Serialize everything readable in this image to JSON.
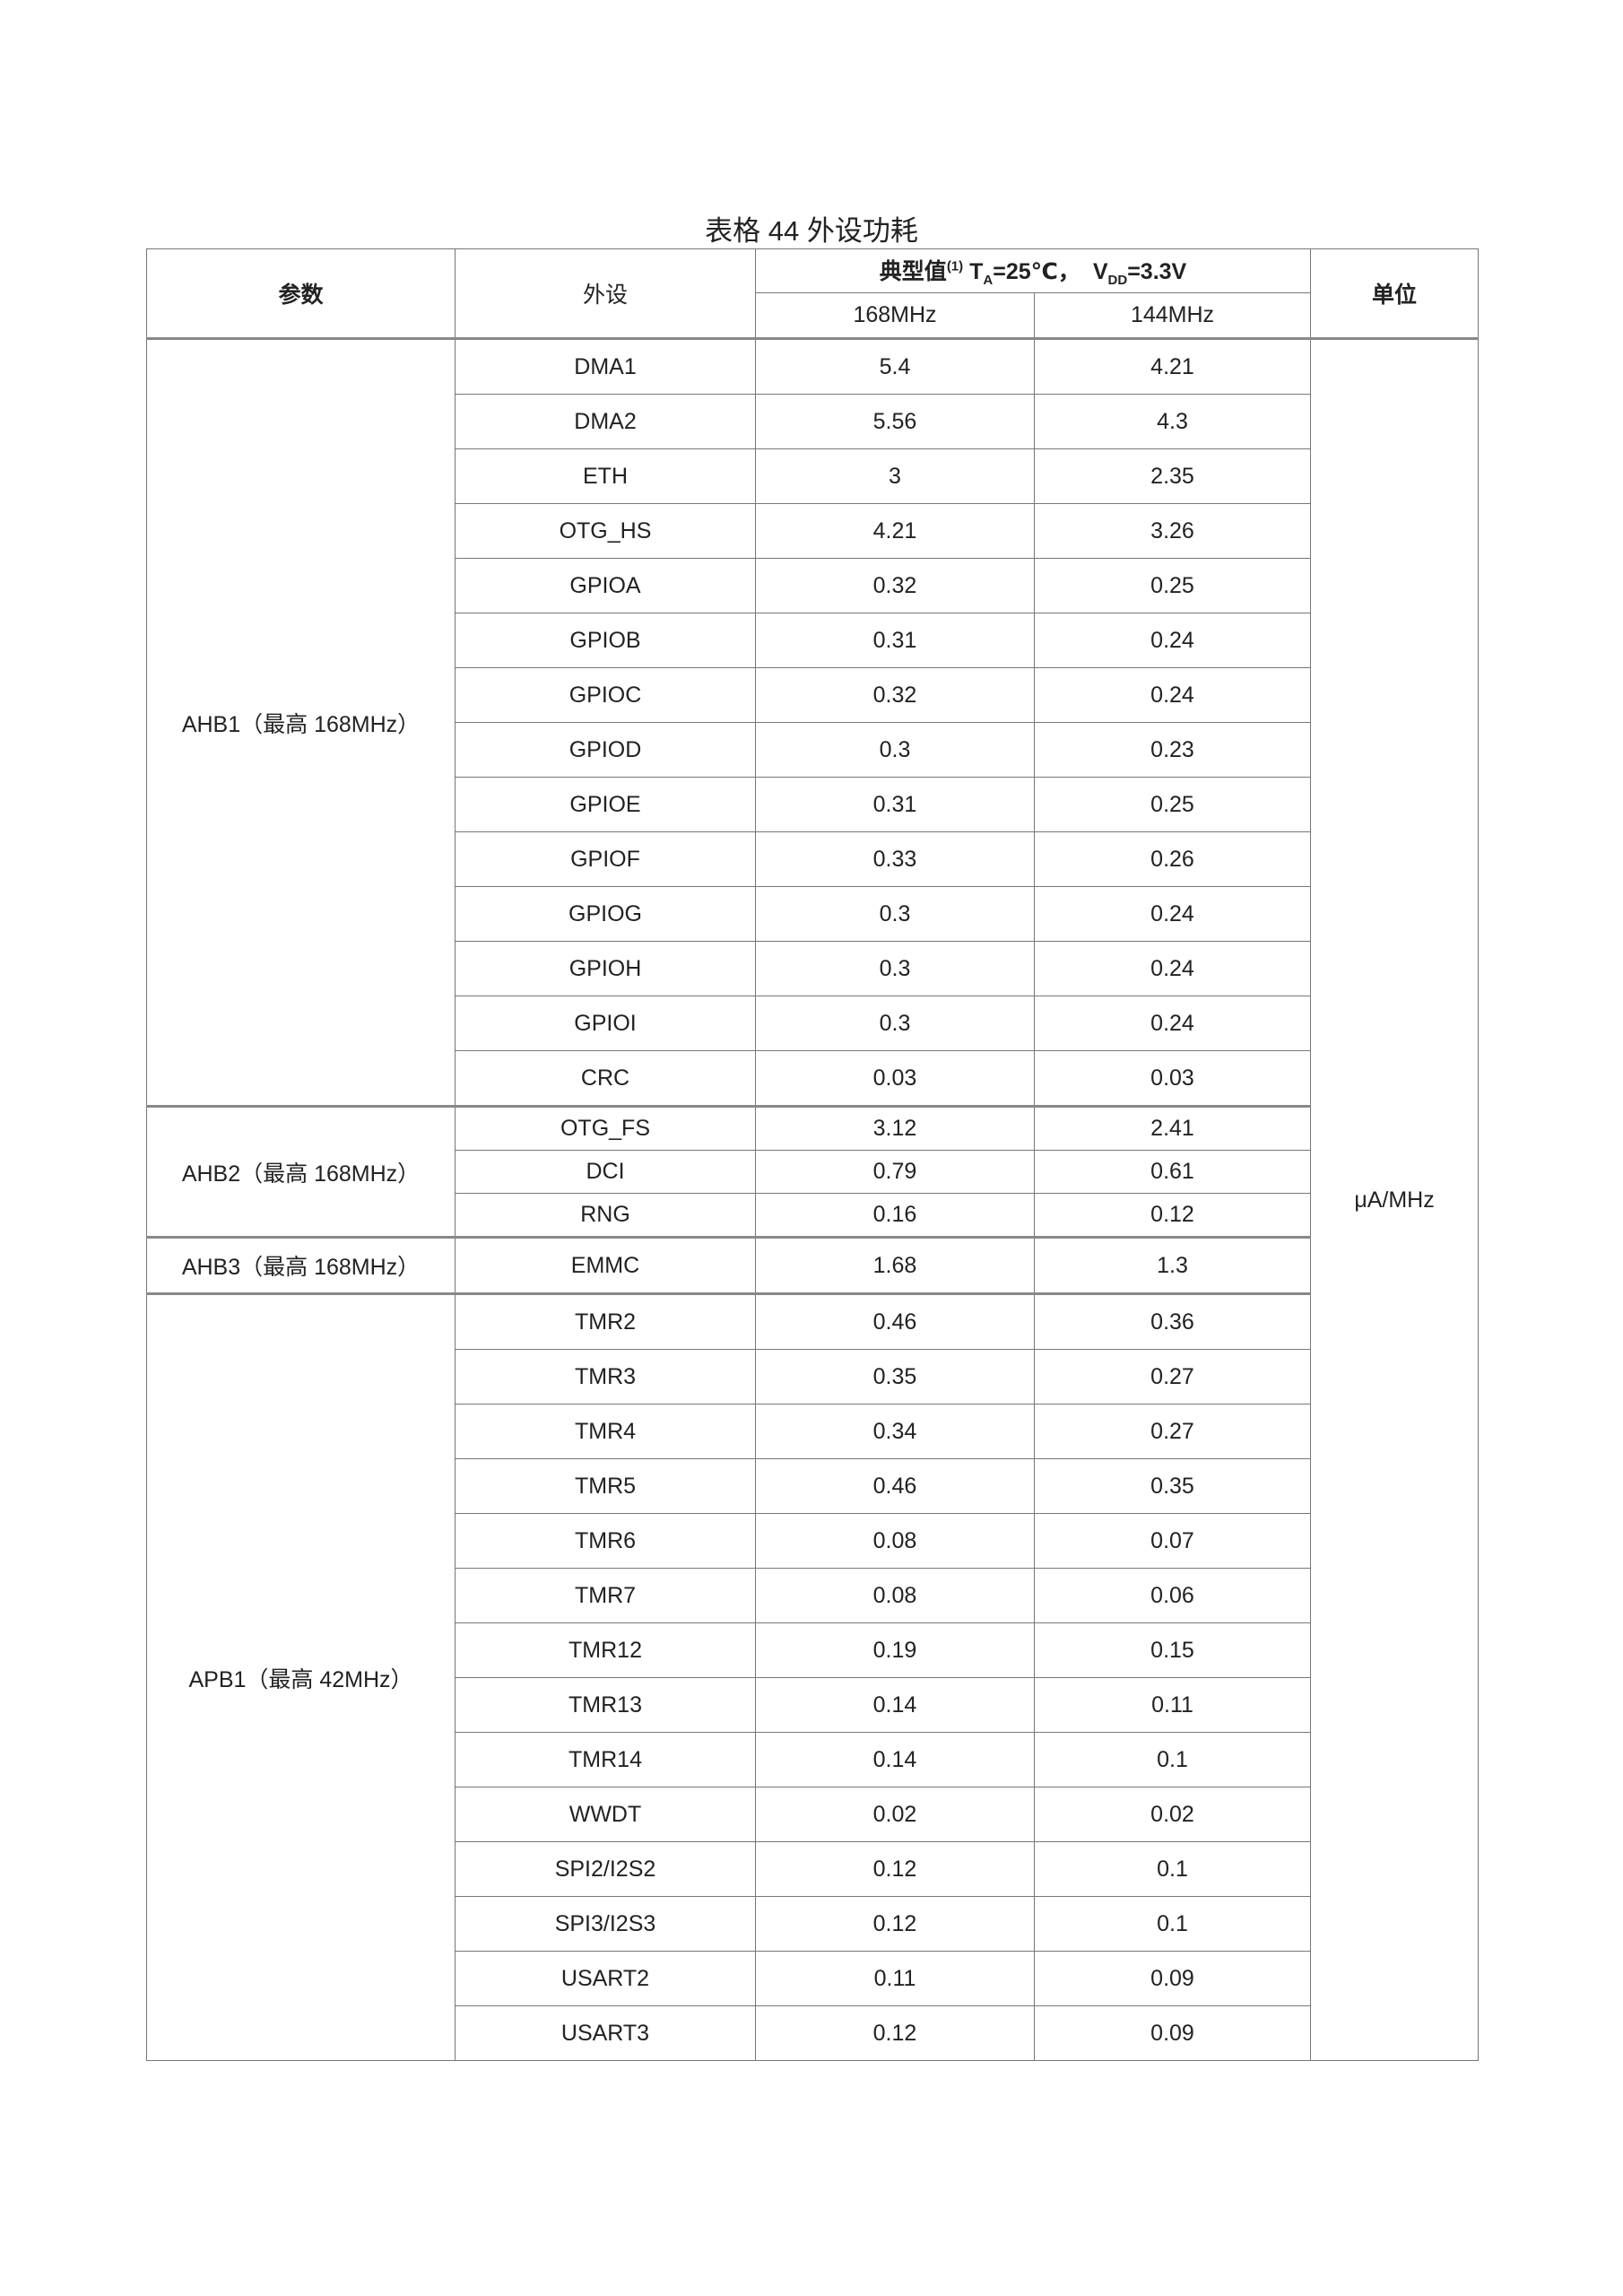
{
  "title": "表格 44  外设功耗",
  "header": {
    "param": "参数",
    "peripheral": "外设",
    "typical": "典型值",
    "note": "(1)",
    "ta": "T",
    "ta_sub": "A",
    "ta_val": "=25℃，",
    "vdd": "V",
    "vdd_sub": "DD",
    "vdd_val": "=3.3V",
    "freq1": "168MHz",
    "freq2": "144MHz",
    "unit": "单位"
  },
  "unit_value": "μA/MHz",
  "groups": [
    {
      "bus": "AHB1（最高 168MHz）",
      "rows": [
        [
          "DMA1",
          "5.4",
          "4.21"
        ],
        [
          "DMA2",
          "5.56",
          "4.3"
        ],
        [
          "ETH",
          "3",
          "2.35"
        ],
        [
          "OTG_HS",
          "4.21",
          "3.26"
        ],
        [
          "GPIOA",
          "0.32",
          "0.25"
        ],
        [
          "GPIOB",
          "0.31",
          "0.24"
        ],
        [
          "GPIOC",
          "0.32",
          "0.24"
        ],
        [
          "GPIOD",
          "0.3",
          "0.23"
        ],
        [
          "GPIOE",
          "0.31",
          "0.25"
        ],
        [
          "GPIOF",
          "0.33",
          "0.26"
        ],
        [
          "GPIOG",
          "0.3",
          "0.24"
        ],
        [
          "GPIOH",
          "0.3",
          "0.24"
        ],
        [
          "GPIOI",
          "0.3",
          "0.24"
        ],
        [
          "CRC",
          "0.03",
          "0.03"
        ]
      ]
    },
    {
      "bus": "AHB2（最高 168MHz）",
      "rows": [
        [
          "OTG_FS",
          "3.12",
          "2.41"
        ],
        [
          "DCI",
          "0.79",
          "0.61"
        ],
        [
          "RNG",
          "0.16",
          "0.12"
        ]
      ]
    },
    {
      "bus": "AHB3（最高 168MHz）",
      "rows": [
        [
          "EMMC",
          "1.68",
          "1.3"
        ]
      ]
    },
    {
      "bus": "APB1（最高 42MHz）",
      "rows": [
        [
          "TMR2",
          "0.46",
          "0.36"
        ],
        [
          "TMR3",
          "0.35",
          "0.27"
        ],
        [
          "TMR4",
          "0.34",
          "0.27"
        ],
        [
          "TMR5",
          "0.46",
          "0.35"
        ],
        [
          "TMR6",
          "0.08",
          "0.07"
        ],
        [
          "TMR7",
          "0.08",
          "0.06"
        ],
        [
          "TMR12",
          "0.19",
          "0.15"
        ],
        [
          "TMR13",
          "0.14",
          "0.11"
        ],
        [
          "TMR14",
          "0.14",
          "0.1"
        ],
        [
          "WWDT",
          "0.02",
          "0.02"
        ],
        [
          "SPI2/I2S2",
          "0.12",
          "0.1"
        ],
        [
          "SPI3/I2S3",
          "0.12",
          "0.1"
        ],
        [
          "USART2",
          "0.11",
          "0.09"
        ],
        [
          "USART3",
          "0.12",
          "0.09"
        ]
      ]
    }
  ]
}
